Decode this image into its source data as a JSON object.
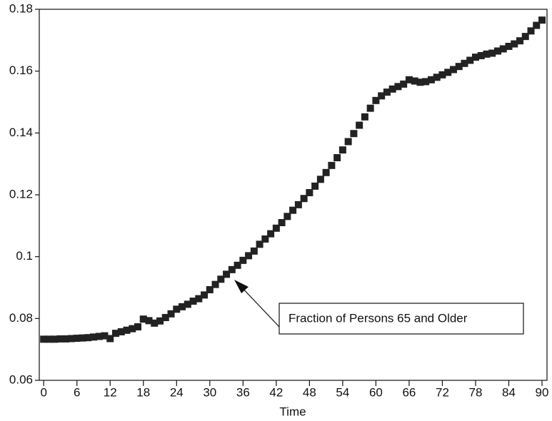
{
  "chart_data": {
    "type": "scatter",
    "x_label": "Time",
    "annotation": "Fraction of Persons 65 and Older",
    "x": [
      0,
      1,
      2,
      3,
      4,
      5,
      6,
      7,
      8,
      9,
      10,
      11,
      12,
      13,
      14,
      15,
      16,
      17,
      18,
      19,
      20,
      21,
      22,
      23,
      24,
      25,
      26,
      27,
      28,
      29,
      30,
      31,
      32,
      33,
      34,
      35,
      36,
      37,
      38,
      39,
      40,
      41,
      42,
      43,
      44,
      45,
      46,
      47,
      48,
      49,
      50,
      51,
      52,
      53,
      54,
      55,
      56,
      57,
      58,
      59,
      60,
      61,
      62,
      63,
      64,
      65,
      66,
      67,
      68,
      69,
      70,
      71,
      72,
      73,
      74,
      75,
      76,
      77,
      78,
      79,
      80,
      81,
      82,
      83,
      84,
      85,
      86,
      87,
      88,
      89,
      90
    ],
    "series": [
      {
        "color": "#222222",
        "values": [
          0.0733,
          0.0733,
          0.0733,
          0.0734,
          0.0734,
          0.0735,
          0.0736,
          0.0737,
          0.0738,
          0.074,
          0.0742,
          0.0744,
          0.0735,
          0.0752,
          0.0757,
          0.0762,
          0.0767,
          0.0773,
          0.0798,
          0.0793,
          0.0785,
          0.0792,
          0.0803,
          0.0815,
          0.083,
          0.0838,
          0.0846,
          0.0856,
          0.0864,
          0.0876,
          0.0893,
          0.091,
          0.0927,
          0.0943,
          0.0958,
          0.0972,
          0.0988,
          0.1003,
          0.1018,
          0.104,
          0.1057,
          0.1074,
          0.1092,
          0.111,
          0.113,
          0.115,
          0.1168,
          0.1188,
          0.1207,
          0.1228,
          0.125,
          0.1272,
          0.1295,
          0.132,
          0.1345,
          0.1372,
          0.1398,
          0.1425,
          0.1452,
          0.148,
          0.1505,
          0.152,
          0.1532,
          0.1542,
          0.155,
          0.1558,
          0.1572,
          0.1568,
          0.1564,
          0.1566,
          0.1572,
          0.158,
          0.1588,
          0.1596,
          0.1605,
          0.1615,
          0.1625,
          0.1635,
          0.1645,
          0.165,
          0.1655,
          0.1658,
          0.1665,
          0.1672,
          0.168,
          0.1688,
          0.1698,
          0.1712,
          0.173,
          0.1748,
          0.1765
        ]
      }
    ],
    "xlim": [
      -0.8,
      90.9
    ],
    "xticks": [
      0,
      6,
      12,
      18,
      24,
      30,
      36,
      42,
      48,
      54,
      60,
      66,
      72,
      78,
      84,
      90
    ],
    "ylim": [
      0.06,
      0.18
    ],
    "yticks": [
      0.06,
      0.08,
      0.1,
      0.12,
      0.14,
      0.16,
      0.18
    ]
  }
}
